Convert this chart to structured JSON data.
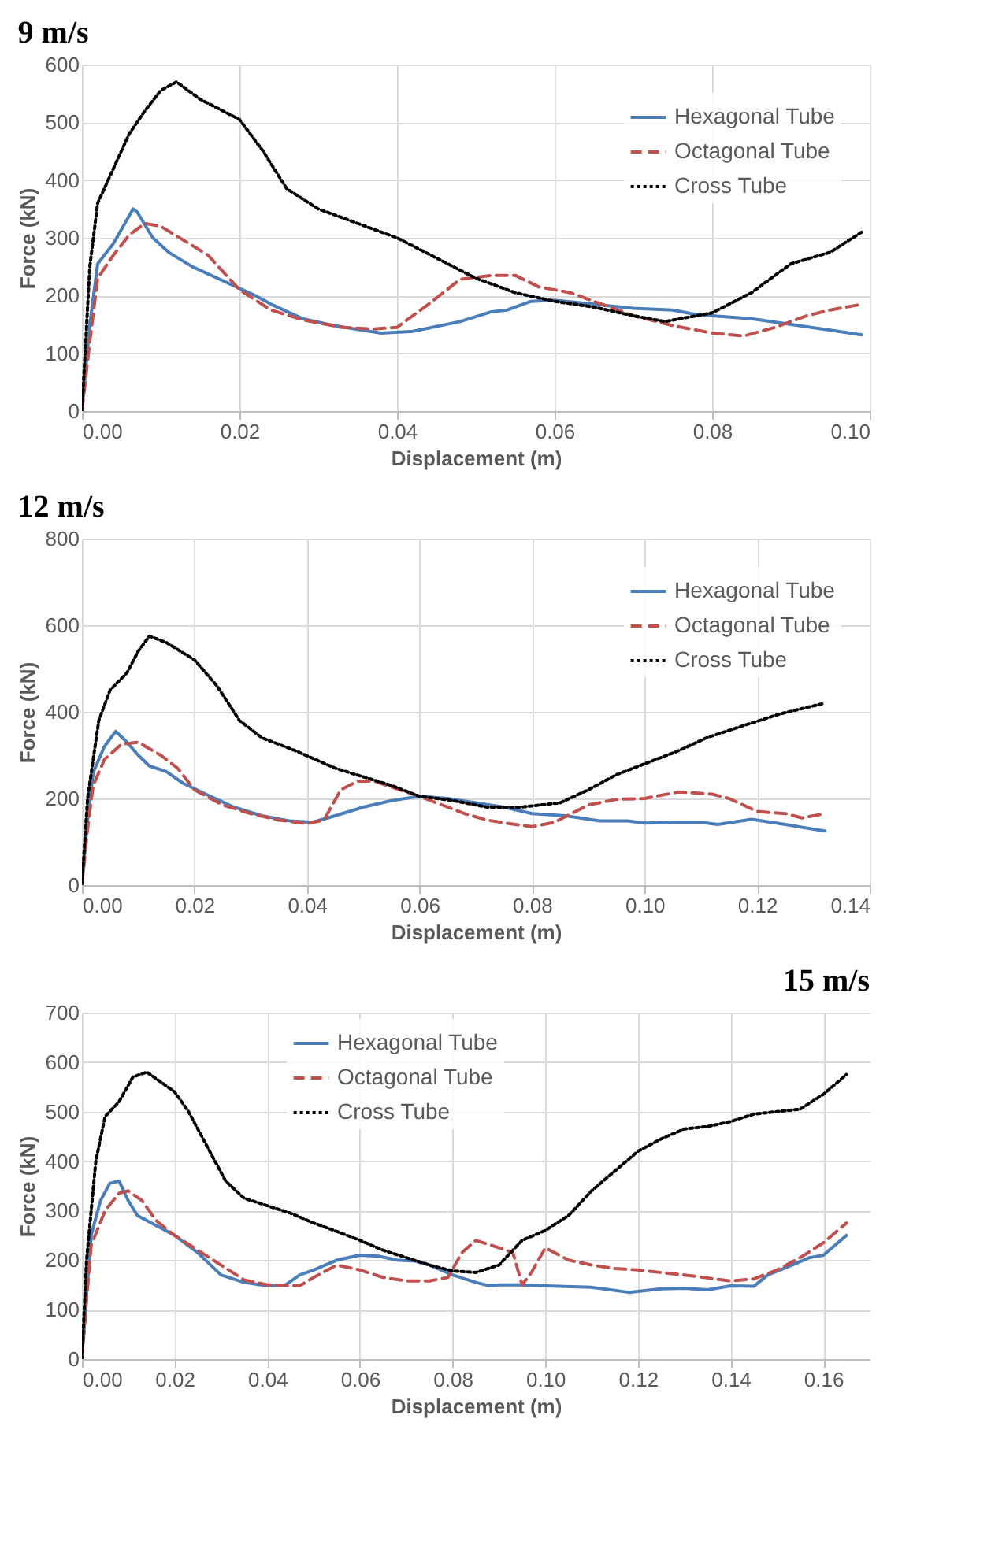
{
  "chart_data": [
    {
      "type": "line",
      "title": "9 m/s",
      "xlabel": "Displacement (m)",
      "ylabel": "Force (kN)",
      "xlim": [
        0,
        0.1
      ],
      "ylim": [
        0,
        600
      ],
      "xticks": [
        {
          "value": 0,
          "label": "0.00"
        },
        {
          "value": 0.02,
          "label": "0.02"
        },
        {
          "value": 0.04,
          "label": "0.04"
        },
        {
          "value": 0.06,
          "label": "0.06"
        },
        {
          "value": 0.08,
          "label": "0.08"
        },
        {
          "value": 0.1,
          "label": "0.10"
        }
      ],
      "yticks": [
        0,
        100,
        200,
        300,
        400,
        500,
        600
      ],
      "grid": true,
      "legend": "top right",
      "series": [
        {
          "name": "Hexagonal Tube",
          "color": "#4a7ebb",
          "line_style": "solid",
          "x": [
            0,
            0.001,
            0.002,
            0.004,
            0.0065,
            0.007,
            0.009,
            0.011,
            0.014,
            0.018,
            0.022,
            0.024,
            0.028,
            0.032,
            0.038,
            0.042,
            0.048,
            0.052,
            0.054,
            0.057,
            0.06,
            0.065,
            0.07,
            0.075,
            0.078,
            0.085,
            0.09,
            0.095,
            0.099
          ],
          "values": [
            0,
            150,
            255,
            290,
            350,
            345,
            300,
            275,
            250,
            225,
            200,
            185,
            160,
            148,
            135,
            138,
            155,
            172,
            175,
            190,
            192,
            185,
            178,
            175,
            167,
            160,
            150,
            140,
            132
          ]
        },
        {
          "name": "Octagonal Tube",
          "color": "#c0504d",
          "line_style": "dashed",
          "x": [
            0,
            0.001,
            0.002,
            0.004,
            0.006,
            0.008,
            0.01,
            0.013,
            0.016,
            0.02,
            0.024,
            0.028,
            0.033,
            0.037,
            0.04,
            0.044,
            0.048,
            0.052,
            0.055,
            0.058,
            0.062,
            0.066,
            0.07,
            0.075,
            0.08,
            0.084,
            0.088,
            0.092,
            0.095,
            0.099
          ],
          "values": [
            0,
            120,
            230,
            270,
            305,
            325,
            320,
            295,
            270,
            210,
            175,
            158,
            145,
            142,
            145,
            185,
            228,
            235,
            235,
            215,
            205,
            185,
            165,
            148,
            135,
            130,
            145,
            165,
            175,
            185
          ]
        },
        {
          "name": "Cross Tube",
          "color": "#000000",
          "line_style": "dotted",
          "x": [
            0,
            0.001,
            0.002,
            0.004,
            0.006,
            0.008,
            0.01,
            0.012,
            0.015,
            0.02,
            0.023,
            0.026,
            0.03,
            0.035,
            0.04,
            0.045,
            0.05,
            0.055,
            0.06,
            0.065,
            0.07,
            0.074,
            0.078,
            0.08,
            0.085,
            0.09,
            0.095,
            0.099
          ],
          "values": [
            0,
            250,
            360,
            420,
            480,
            520,
            555,
            570,
            540,
            505,
            450,
            385,
            350,
            325,
            300,
            265,
            230,
            205,
            190,
            180,
            165,
            155,
            165,
            170,
            205,
            255,
            275,
            310
          ]
        }
      ]
    },
    {
      "type": "line",
      "title": "12 m/s",
      "xlabel": "Displacement (m)",
      "ylabel": "Force (kN)",
      "xlim": [
        0,
        0.14
      ],
      "ylim": [
        0,
        800
      ],
      "xticks": [
        {
          "value": 0,
          "label": "0.00"
        },
        {
          "value": 0.02,
          "label": "0.02"
        },
        {
          "value": 0.04,
          "label": "0.04"
        },
        {
          "value": 0.06,
          "label": "0.06"
        },
        {
          "value": 0.08,
          "label": "0.08"
        },
        {
          "value": 0.1,
          "label": "0.10"
        },
        {
          "value": 0.12,
          "label": "0.12"
        },
        {
          "value": 0.14,
          "label": "0.14"
        }
      ],
      "yticks": [
        0,
        200,
        400,
        600,
        800
      ],
      "grid": true,
      "legend": "top right",
      "series": [
        {
          "name": "Hexagonal Tube",
          "color": "#4a7ebb",
          "line_style": "solid",
          "x": [
            0,
            0.001,
            0.002,
            0.004,
            0.006,
            0.008,
            0.01,
            0.012,
            0.015,
            0.018,
            0.022,
            0.027,
            0.032,
            0.037,
            0.041,
            0.045,
            0.05,
            0.055,
            0.06,
            0.065,
            0.07,
            0.075,
            0.08,
            0.086,
            0.092,
            0.097,
            0.1,
            0.105,
            0.11,
            0.113,
            0.119,
            0.125,
            0.132
          ],
          "values": [
            0,
            150,
            260,
            320,
            355,
            330,
            300,
            275,
            262,
            235,
            210,
            180,
            160,
            148,
            145,
            160,
            180,
            195,
            205,
            200,
            190,
            180,
            165,
            160,
            148,
            148,
            143,
            145,
            145,
            140,
            152,
            140,
            125
          ]
        },
        {
          "name": "Octagonal Tube",
          "color": "#c0504d",
          "line_style": "dashed",
          "x": [
            0,
            0.001,
            0.002,
            0.004,
            0.007,
            0.01,
            0.014,
            0.017,
            0.02,
            0.025,
            0.03,
            0.035,
            0.04,
            0.043,
            0.046,
            0.049,
            0.052,
            0.056,
            0.06,
            0.064,
            0.068,
            0.072,
            0.077,
            0.08,
            0.084,
            0.09,
            0.095,
            0.1,
            0.106,
            0.112,
            0.115,
            0.12,
            0.125,
            0.128,
            0.132
          ],
          "values": [
            0,
            130,
            230,
            290,
            325,
            330,
            300,
            270,
            220,
            185,
            165,
            150,
            142,
            150,
            220,
            240,
            240,
            222,
            205,
            185,
            165,
            150,
            140,
            135,
            145,
            185,
            198,
            200,
            215,
            210,
            200,
            170,
            165,
            155,
            165
          ]
        },
        {
          "name": "Cross Tube",
          "color": "#000000",
          "line_style": "dotted",
          "x": [
            0,
            0.001,
            0.003,
            0.005,
            0.008,
            0.01,
            0.012,
            0.015,
            0.02,
            0.024,
            0.028,
            0.032,
            0.038,
            0.045,
            0.05,
            0.055,
            0.06,
            0.066,
            0.072,
            0.078,
            0.085,
            0.09,
            0.095,
            0.1,
            0.106,
            0.111,
            0.118,
            0.124,
            0.132
          ],
          "values": [
            0,
            200,
            380,
            450,
            490,
            540,
            575,
            560,
            520,
            460,
            380,
            340,
            310,
            270,
            250,
            230,
            205,
            195,
            180,
            180,
            190,
            220,
            255,
            280,
            310,
            340,
            370,
            395,
            420
          ]
        }
      ]
    },
    {
      "type": "line",
      "title": "15 m/s",
      "xlabel": "Displacement (m)",
      "ylabel": "Force (kN)",
      "xlim": [
        0,
        0.17
      ],
      "ylim": [
        0,
        700
      ],
      "xticks": [
        {
          "value": 0,
          "label": "0.00"
        },
        {
          "value": 0.02,
          "label": "0.02"
        },
        {
          "value": 0.04,
          "label": "0.04"
        },
        {
          "value": 0.06,
          "label": "0.06"
        },
        {
          "value": 0.08,
          "label": "0.08"
        },
        {
          "value": 0.1,
          "label": "0.10"
        },
        {
          "value": 0.12,
          "label": "0.12"
        },
        {
          "value": 0.14,
          "label": "0.14"
        },
        {
          "value": 0.16,
          "label": "0.16"
        }
      ],
      "yticks": [
        0,
        100,
        200,
        300,
        400,
        500,
        600,
        700
      ],
      "grid": true,
      "legend": "top",
      "series": [
        {
          "name": "Hexagonal Tube",
          "color": "#4a7ebb",
          "line_style": "solid",
          "x": [
            0,
            0.001,
            0.002,
            0.004,
            0.006,
            0.008,
            0.01,
            0.012,
            0.016,
            0.02,
            0.025,
            0.03,
            0.035,
            0.04,
            0.044,
            0.047,
            0.05,
            0.055,
            0.06,
            0.064,
            0.068,
            0.072,
            0.075,
            0.08,
            0.085,
            0.088,
            0.09,
            0.095,
            0.1,
            0.11,
            0.118,
            0.125,
            0.13,
            0.135,
            0.14,
            0.145,
            0.148,
            0.152,
            0.157,
            0.16,
            0.165
          ],
          "values": [
            0,
            130,
            250,
            320,
            355,
            360,
            320,
            290,
            270,
            250,
            215,
            170,
            155,
            148,
            150,
            170,
            180,
            200,
            210,
            208,
            200,
            198,
            190,
            170,
            155,
            148,
            150,
            150,
            148,
            145,
            135,
            142,
            143,
            140,
            148,
            147,
            170,
            185,
            205,
            210,
            250
          ]
        },
        {
          "name": "Octagonal Tube",
          "color": "#c0504d",
          "line_style": "dashed",
          "x": [
            0,
            0.001,
            0.002,
            0.005,
            0.008,
            0.01,
            0.013,
            0.016,
            0.02,
            0.025,
            0.03,
            0.035,
            0.04,
            0.047,
            0.05,
            0.055,
            0.06,
            0.065,
            0.07,
            0.075,
            0.079,
            0.082,
            0.085,
            0.09,
            0.093,
            0.095,
            0.097,
            0.1,
            0.105,
            0.11,
            0.115,
            0.12,
            0.13,
            0.14,
            0.145,
            0.15,
            0.155,
            0.16,
            0.165
          ],
          "values": [
            0,
            120,
            230,
            300,
            335,
            340,
            320,
            280,
            250,
            220,
            190,
            160,
            150,
            148,
            165,
            190,
            180,
            165,
            158,
            158,
            165,
            215,
            240,
            225,
            215,
            150,
            175,
            225,
            200,
            190,
            183,
            180,
            170,
            158,
            162,
            180,
            205,
            235,
            275
          ]
        },
        {
          "name": "Cross Tube",
          "color": "#000000",
          "line_style": "dotted",
          "x": [
            0,
            0.001,
            0.003,
            0.005,
            0.008,
            0.011,
            0.014,
            0.017,
            0.02,
            0.023,
            0.027,
            0.031,
            0.035,
            0.04,
            0.045,
            0.05,
            0.055,
            0.06,
            0.065,
            0.07,
            0.075,
            0.08,
            0.085,
            0.09,
            0.095,
            0.1,
            0.105,
            0.11,
            0.115,
            0.12,
            0.125,
            0.13,
            0.135,
            0.14,
            0.145,
            0.15,
            0.155,
            0.16,
            0.165
          ],
          "values": [
            0,
            200,
            400,
            490,
            520,
            570,
            580,
            560,
            540,
            500,
            430,
            360,
            325,
            310,
            295,
            275,
            258,
            240,
            220,
            205,
            190,
            178,
            175,
            190,
            240,
            260,
            290,
            340,
            380,
            420,
            445,
            465,
            470,
            480,
            495,
            500,
            505,
            535,
            575
          ]
        }
      ]
    }
  ]
}
